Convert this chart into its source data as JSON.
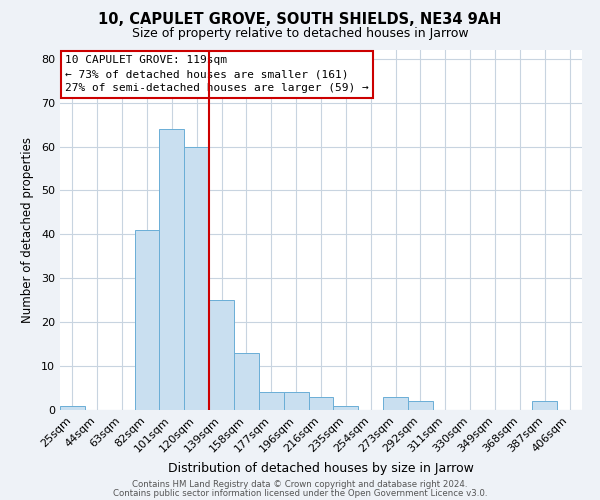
{
  "title": "10, CAPULET GROVE, SOUTH SHIELDS, NE34 9AH",
  "subtitle": "Size of property relative to detached houses in Jarrow",
  "xlabel": "Distribution of detached houses by size in Jarrow",
  "ylabel": "Number of detached properties",
  "categories": [
    "25sqm",
    "44sqm",
    "63sqm",
    "82sqm",
    "101sqm",
    "120sqm",
    "139sqm",
    "158sqm",
    "177sqm",
    "196sqm",
    "216sqm",
    "235sqm",
    "254sqm",
    "273sqm",
    "292sqm",
    "311sqm",
    "330sqm",
    "349sqm",
    "368sqm",
    "387sqm",
    "406sqm"
  ],
  "values": [
    1,
    0,
    0,
    41,
    64,
    60,
    25,
    13,
    4,
    4,
    3,
    1,
    0,
    3,
    2,
    0,
    0,
    0,
    0,
    2,
    0
  ],
  "bar_color": "#c9dff0",
  "bar_edge_color": "#6aaed6",
  "highlight_line_index": 5,
  "highlight_color": "#cc0000",
  "box_text_line1": "10 CAPULET GROVE: 119sqm",
  "box_text_line2": "← 73% of detached houses are smaller (161)",
  "box_text_line3": "27% of semi-detached houses are larger (59) →",
  "box_color": "white",
  "box_edge_color": "#cc0000",
  "ylim": [
    0,
    82
  ],
  "yticks": [
    0,
    10,
    20,
    30,
    40,
    50,
    60,
    70,
    80
  ],
  "footer_line1": "Contains HM Land Registry data © Crown copyright and database right 2024.",
  "footer_line2": "Contains public sector information licensed under the Open Government Licence v3.0.",
  "background_color": "#eef2f7",
  "plot_bg_color": "white",
  "grid_color": "#c8d4e0"
}
